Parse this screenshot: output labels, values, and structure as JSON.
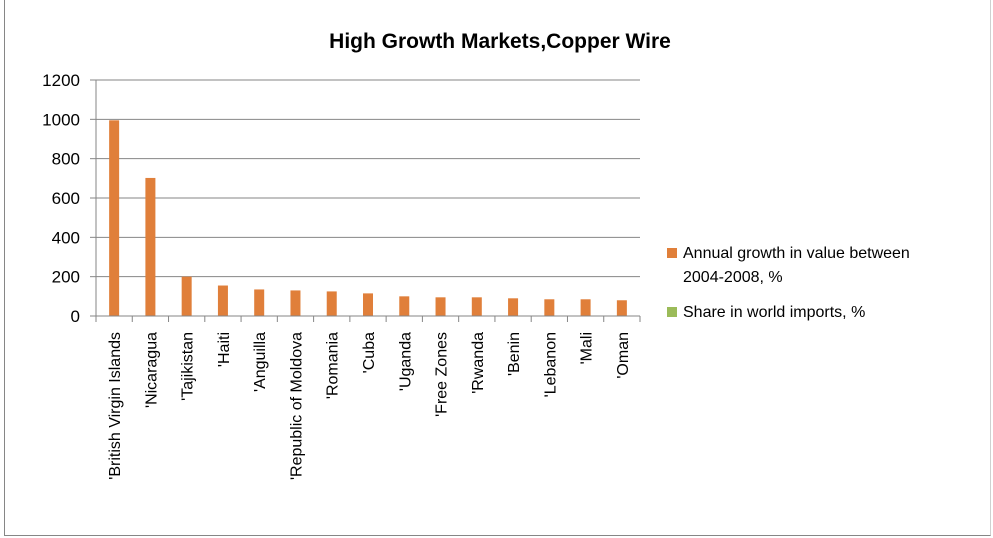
{
  "chart_data": {
    "type": "bar",
    "title": "High Growth Markets,Copper Wire",
    "xlabel": "",
    "ylabel": "",
    "ylim": [
      0,
      1200
    ],
    "yticks": [
      0,
      200,
      400,
      600,
      800,
      1000,
      1200
    ],
    "grid": true,
    "legend_position": "right",
    "categories": [
      "'British Virgin Islands",
      "'Nicaragua",
      "'Tajikistan",
      "'Haiti",
      "'Anguilla",
      "'Republic of Moldova",
      "'Romania",
      "'Cuba",
      "'Uganda",
      "'Free Zones",
      "'Rwanda",
      "'Benin",
      "'Lebanon",
      "'Mali",
      "'Oman"
    ],
    "series": [
      {
        "name": "Annual growth in value between 2004-2008, %",
        "legend_lines": [
          "Annual growth in value between",
          "2004-2008, %"
        ],
        "color": "#e07f3a",
        "values": [
          995,
          702,
          200,
          155,
          135,
          130,
          125,
          115,
          100,
          95,
          95,
          90,
          85,
          85,
          80
        ]
      },
      {
        "name": "Share in world imports, %",
        "legend_lines": [
          "Share in world imports, %"
        ],
        "color": "#9bbb59",
        "values": [
          0,
          0,
          0,
          0,
          0,
          0,
          0,
          0,
          0,
          0,
          0,
          0,
          0,
          0,
          0
        ]
      }
    ]
  }
}
